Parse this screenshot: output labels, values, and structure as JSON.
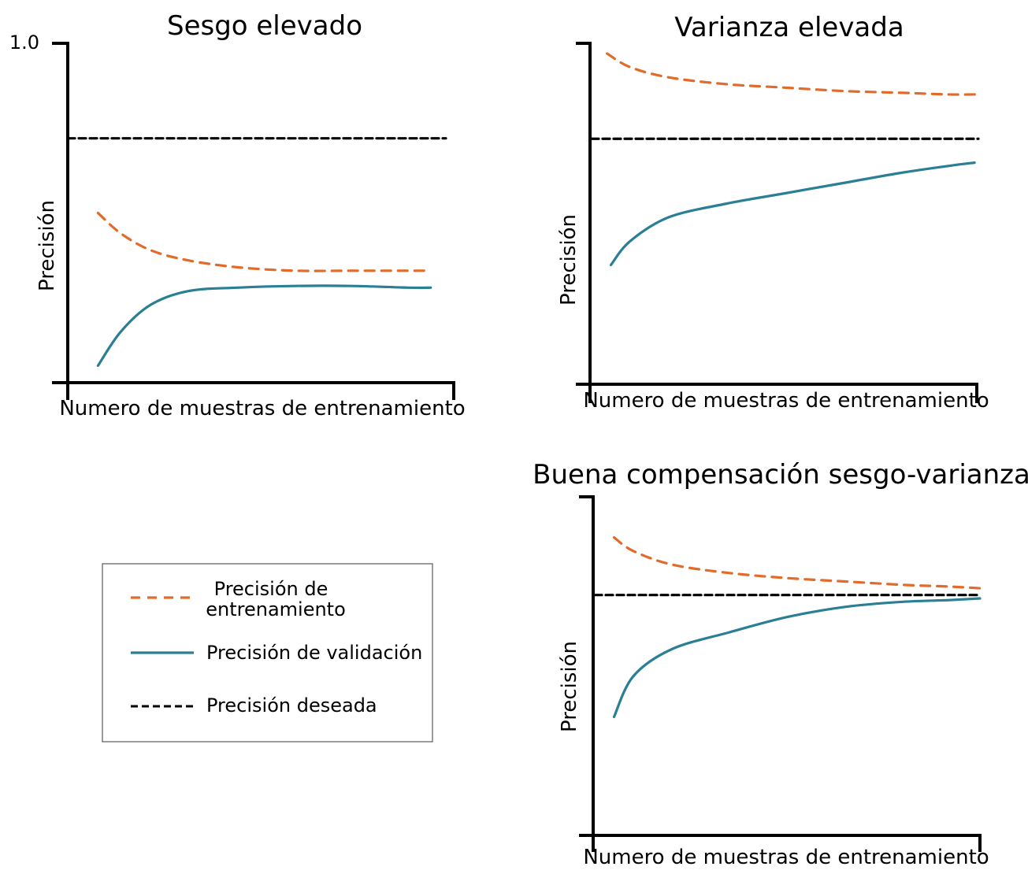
{
  "colors": {
    "training": "#e06b2a",
    "validation": "#2a7f95",
    "desired": "#000000"
  },
  "legend": {
    "training": "Precisión de\nentrenamiento",
    "validation": "Precisión de validación",
    "desired": "Precisión deseada"
  },
  "chart_data": [
    {
      "type": "line",
      "title": "Sesgo elevado",
      "xlabel": "Numero de muestras de entrenamiento",
      "ylabel": "Precisión",
      "y_ticks": [
        "1.0"
      ],
      "ylim": [
        0,
        1
      ],
      "xlim": [
        0,
        1
      ],
      "grid": false,
      "series": [
        {
          "key": "training",
          "style": "dashed",
          "x": [
            0.08,
            0.14,
            0.22,
            0.32,
            0.45,
            0.6,
            0.75,
            0.9,
            0.96
          ],
          "y": [
            0.5,
            0.44,
            0.39,
            0.36,
            0.34,
            0.33,
            0.33,
            0.33,
            0.33
          ]
        },
        {
          "key": "validation",
          "style": "solid",
          "x": [
            0.08,
            0.14,
            0.22,
            0.32,
            0.45,
            0.6,
            0.75,
            0.9,
            0.96
          ],
          "y": [
            0.05,
            0.15,
            0.23,
            0.27,
            0.28,
            0.285,
            0.285,
            0.28,
            0.28
          ]
        },
        {
          "key": "desired",
          "style": "dashed",
          "x": [
            0.0,
            1.0
          ],
          "y": [
            0.72,
            0.72
          ]
        }
      ]
    },
    {
      "type": "line",
      "title": "Varianza elevada",
      "xlabel": "Numero de muestras de entrenamiento",
      "ylabel": "Precisión",
      "y_ticks": [],
      "ylim": [
        0,
        1
      ],
      "xlim": [
        0,
        1
      ],
      "grid": false,
      "series": [
        {
          "key": "training",
          "style": "dashed",
          "x": [
            0.04,
            0.1,
            0.2,
            0.35,
            0.5,
            0.65,
            0.8,
            0.92,
            1.0
          ],
          "y": [
            0.97,
            0.93,
            0.9,
            0.88,
            0.87,
            0.86,
            0.855,
            0.85,
            0.85
          ]
        },
        {
          "key": "validation",
          "style": "solid",
          "x": [
            0.05,
            0.1,
            0.2,
            0.35,
            0.5,
            0.65,
            0.8,
            0.92,
            0.99
          ],
          "y": [
            0.35,
            0.42,
            0.49,
            0.53,
            0.56,
            0.59,
            0.62,
            0.64,
            0.65
          ]
        },
        {
          "key": "desired",
          "style": "dashed",
          "x": [
            0.0,
            1.0
          ],
          "y": [
            0.72,
            0.72
          ]
        }
      ]
    },
    {
      "type": "line",
      "title": "Buena compensación sesgo-varianza",
      "xlabel": "Numero de muestras de entrenamiento",
      "ylabel": "Precisión",
      "y_ticks": [],
      "ylim": [
        0,
        1
      ],
      "xlim": [
        0,
        1
      ],
      "grid": false,
      "series": [
        {
          "key": "training",
          "style": "dashed",
          "x": [
            0.05,
            0.1,
            0.2,
            0.35,
            0.5,
            0.65,
            0.8,
            0.92,
            1.0
          ],
          "y": [
            0.88,
            0.84,
            0.8,
            0.775,
            0.76,
            0.75,
            0.74,
            0.735,
            0.73
          ]
        },
        {
          "key": "validation",
          "style": "solid",
          "x": [
            0.05,
            0.1,
            0.2,
            0.35,
            0.5,
            0.65,
            0.8,
            0.92,
            1.0
          ],
          "y": [
            0.35,
            0.47,
            0.55,
            0.6,
            0.645,
            0.675,
            0.69,
            0.695,
            0.7
          ]
        },
        {
          "key": "desired",
          "style": "dashed",
          "x": [
            0.0,
            1.0
          ],
          "y": [
            0.71,
            0.71
          ]
        }
      ]
    }
  ]
}
